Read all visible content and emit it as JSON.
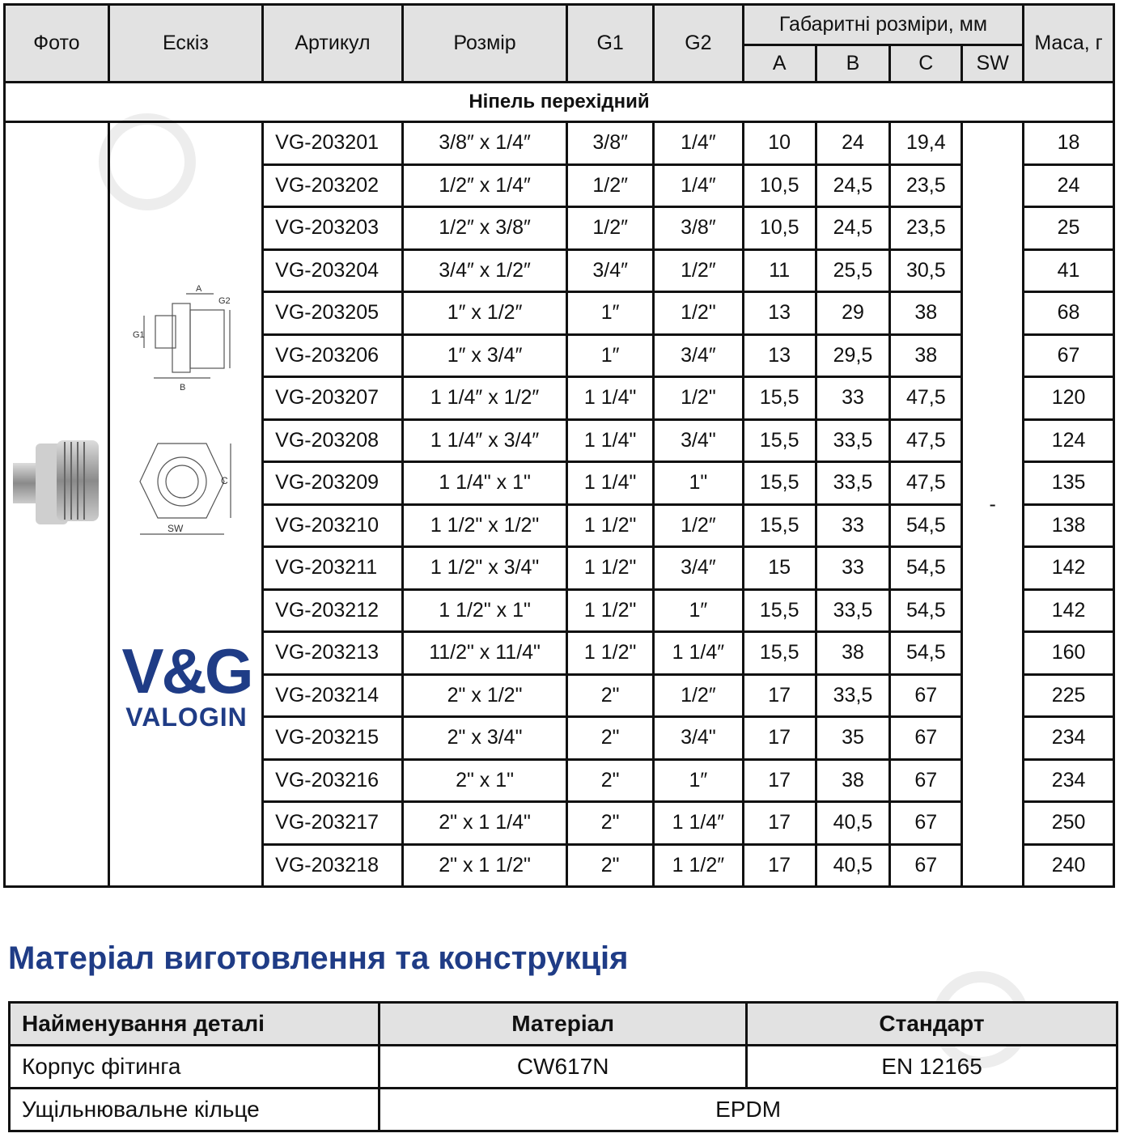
{
  "spec_table": {
    "headers": {
      "photo": "Фото",
      "sketch": "Ескіз",
      "article": "Артикул",
      "size": "Розмір",
      "g1": "G1",
      "g2": "G2",
      "dims": "Габаритні розміри, мм",
      "a": "A",
      "b": "B",
      "c": "C",
      "sw": "SW",
      "mass": "Маса, г"
    },
    "section": "Ніпель перехідний",
    "sw_value": "-",
    "rows": [
      [
        "VG-203201",
        "3/8″ x 1/4″",
        "3/8″",
        "1/4″",
        "10",
        "24",
        "19,4",
        "18"
      ],
      [
        "VG-203202",
        "1/2″ x 1/4″",
        "1/2″",
        "1/4″",
        "10,5",
        "24,5",
        "23,5",
        "24"
      ],
      [
        "VG-203203",
        "1/2″ x 3/8″",
        "1/2″",
        "3/8″",
        "10,5",
        "24,5",
        "23,5",
        "25"
      ],
      [
        "VG-203204",
        "3/4″ x 1/2″",
        "3/4″",
        "1/2″",
        "11",
        "25,5",
        "30,5",
        "41"
      ],
      [
        "VG-203205",
        "1″ x 1/2″",
        "1″",
        "1/2\"",
        "13",
        "29",
        "38",
        "68"
      ],
      [
        "VG-203206",
        "1″ x 3/4″",
        "1″",
        "3/4″",
        "13",
        "29,5",
        "38",
        "67"
      ],
      [
        "VG-203207",
        "1 1/4″ x 1/2″",
        "1 1/4\"",
        "1/2\"",
        "15,5",
        "33",
        "47,5",
        "120"
      ],
      [
        "VG-203208",
        "1 1/4″ x 3/4″",
        "1 1/4\"",
        "3/4\"",
        "15,5",
        "33,5",
        "47,5",
        "124"
      ],
      [
        "VG-203209",
        "1 1/4\" x 1\"",
        "1 1/4\"",
        "1\"",
        "15,5",
        "33,5",
        "47,5",
        "135"
      ],
      [
        "VG-203210",
        "1 1/2\" x 1/2\"",
        "1 1/2\"",
        "1/2″",
        "15,5",
        "33",
        "54,5",
        "138"
      ],
      [
        "VG-203211",
        "1 1/2\" x 3/4\"",
        "1 1/2\"",
        "3/4″",
        "15",
        "33",
        "54,5",
        "142"
      ],
      [
        "VG-203212",
        "1 1/2\" x 1\"",
        "1 1/2\"",
        "1″",
        "15,5",
        "33,5",
        "54,5",
        "142"
      ],
      [
        "VG-203213",
        "11/2\" x 11/4\"",
        "1 1/2\"",
        "1 1/4″",
        "15,5",
        "38",
        "54,5",
        "160"
      ],
      [
        "VG-203214",
        "2\" x 1/2\"",
        "2\"",
        "1/2″",
        "17",
        "33,5",
        "67",
        "225"
      ],
      [
        "VG-203215",
        "2\" x 3/4\"",
        "2\"",
        "3/4\"",
        "17",
        "35",
        "67",
        "234"
      ],
      [
        "VG-203216",
        "2\" x 1\"",
        "2\"",
        "1″",
        "17",
        "38",
        "67",
        "234"
      ],
      [
        "VG-203217",
        "2\" x 1 1/4\"",
        "2\"",
        "1 1/4″",
        "17",
        "40,5",
        "67",
        "250"
      ],
      [
        "VG-203218",
        "2\" x 1 1/2\"",
        "2\"",
        "1 1/2″",
        "17",
        "40,5",
        "67",
        "240"
      ]
    ]
  },
  "sketch_labels": {
    "a": "A",
    "b": "B",
    "c": "C",
    "g1": "G1",
    "g2": "G2",
    "sw": "SW"
  },
  "logo": {
    "big": "V&G",
    "small": "VALOGIN",
    "color": "#1f3c86"
  },
  "material": {
    "title": "Матеріал виготовлення та конструкція",
    "headers": [
      "Найменування деталі",
      "Матеріал",
      "Стандарт"
    ],
    "rows": [
      [
        "Корпус фітинга",
        "CW617N",
        "EN 12165"
      ],
      [
        "Ущільнювальне кільце",
        "EPDM",
        ""
      ]
    ]
  }
}
